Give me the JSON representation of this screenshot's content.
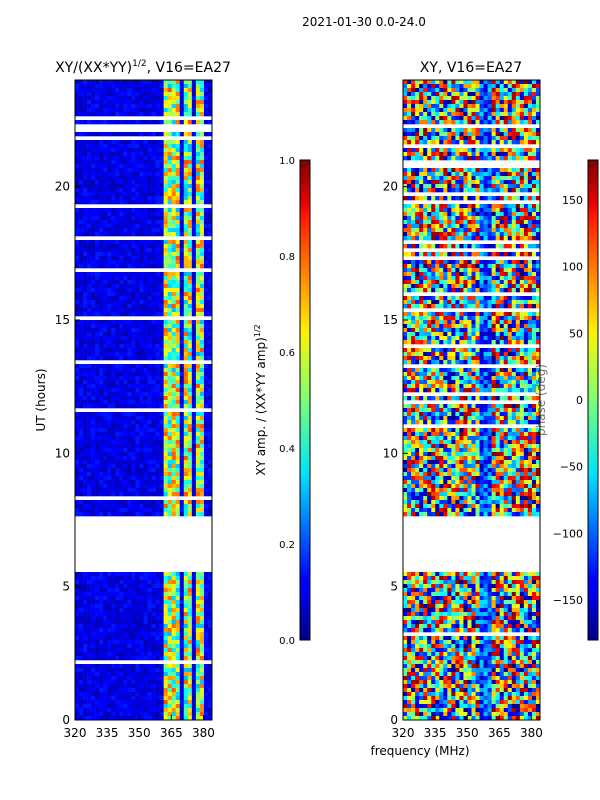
{
  "suptitle": "2021-01-30 0.0-24.0",
  "shared_xlabel": "frequency (MHz)",
  "chart_data": [
    {
      "type": "heatmap",
      "title": "XY/(XX*YY)^1/2, V16=EA27",
      "title_main": "XY/(XX*YY)",
      "title_sup": "1/2",
      "title_tail": ", V16=EA27",
      "xlabel": "",
      "ylabel": "UT (hours)",
      "xlim": [
        320,
        384
      ],
      "ylim": [
        0,
        24
      ],
      "xticks": [
        320,
        335,
        350,
        365,
        380
      ],
      "yticks": [
        0,
        5,
        10,
        15,
        20
      ],
      "colorbar": {
        "label": "XY amp. / (XX*YY amp)^1/2",
        "label_main": "XY amp. / (XX*YY amp)",
        "label_sup": "1/2",
        "range": [
          0.0,
          1.0
        ],
        "ticks": [
          "0.0",
          "0.2",
          "0.4",
          "0.6",
          "0.8",
          "1.0"
        ],
        "tick_values": [
          0.0,
          0.2,
          0.4,
          0.6,
          0.8,
          1.0
        ],
        "colormap": "jet"
      },
      "bright_bands_mhz": [
        [
          362,
          367
        ],
        [
          367,
          369
        ],
        [
          370,
          372
        ],
        [
          373,
          375
        ],
        [
          376,
          378
        ],
        [
          378,
          380
        ]
      ],
      "data_gap_hours": [
        5.5,
        7.7
      ]
    },
    {
      "type": "heatmap",
      "title": "XY, V16=EA27",
      "xlabel": "frequency (MHz)",
      "ylabel": "",
      "xlim": [
        320,
        384
      ],
      "ylim": [
        0,
        24
      ],
      "xticks": [
        320,
        335,
        350,
        365,
        380
      ],
      "yticks": [
        0,
        5,
        10,
        15,
        20
      ],
      "colorbar": {
        "label": "phase (deg)",
        "range": [
          -180,
          180
        ],
        "ticks": [
          "−150",
          "−100",
          "−50",
          "0",
          "50",
          "100",
          "150"
        ],
        "tick_values": [
          -150,
          -100,
          -50,
          0,
          50,
          100,
          150
        ],
        "colormap": "jet"
      },
      "data_gap_hours": [
        5.5,
        7.7
      ]
    }
  ],
  "colors": {
    "jet_low": "#00008f",
    "jet_high": "#800000"
  }
}
